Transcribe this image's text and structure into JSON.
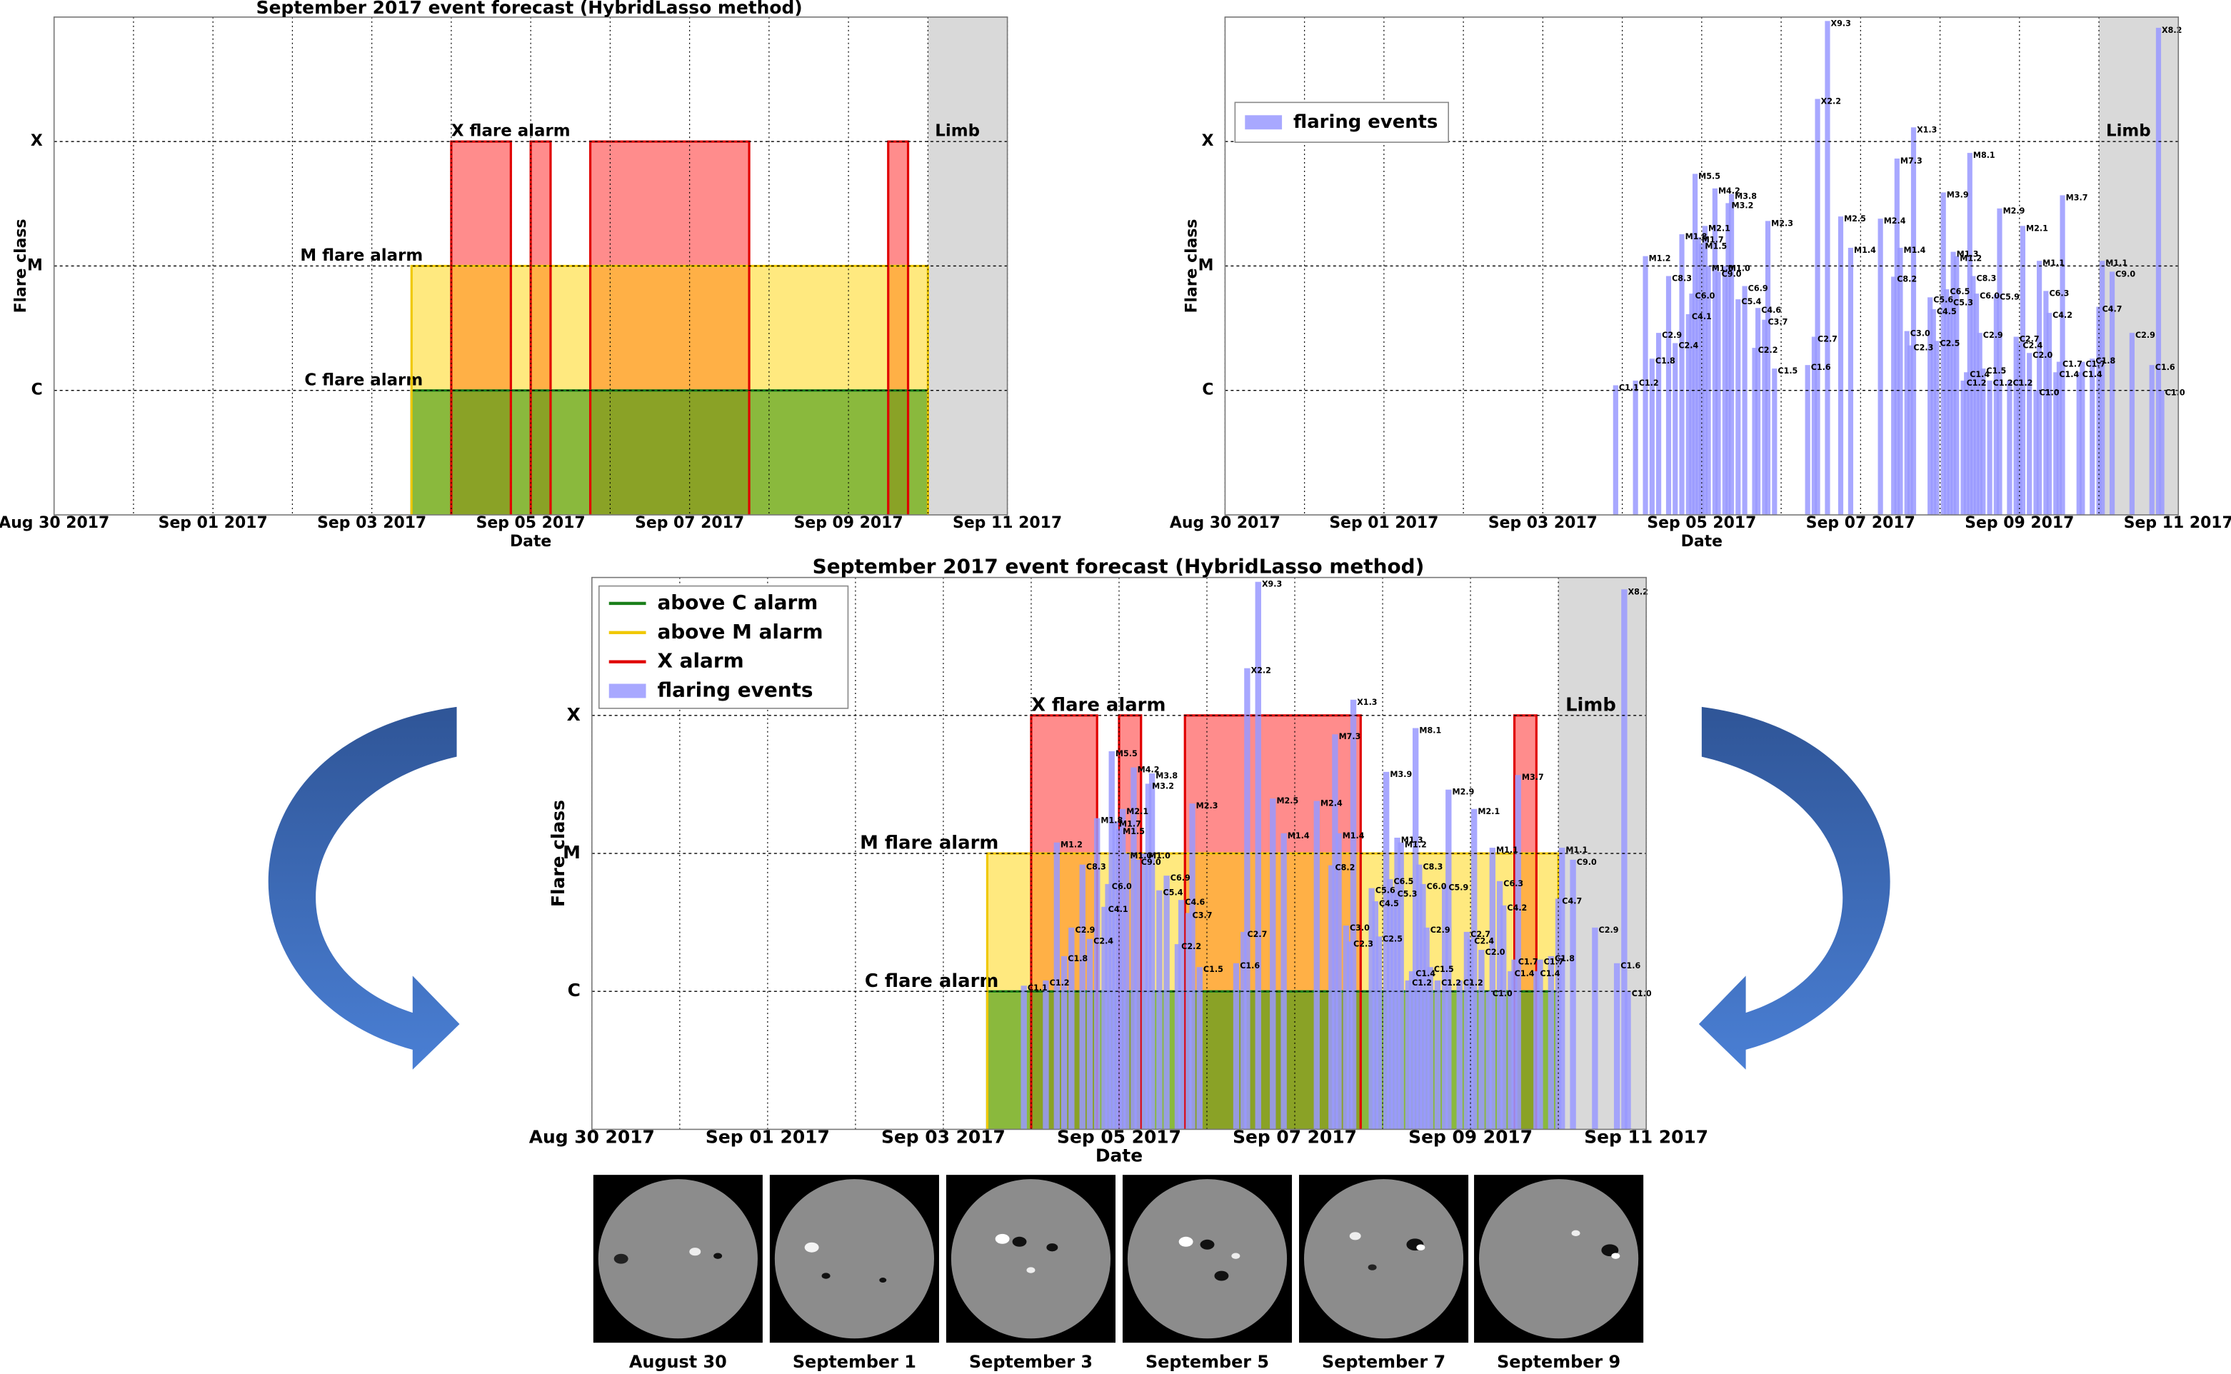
{
  "chart_data": [
    {
      "type": "area",
      "title": "September 2017 event forecast (HybridLasso method)",
      "xlabel": "Date",
      "ylabel": "Flare class",
      "xlim": [
        "2017-08-30T00:00",
        "2017-09-11T00:00"
      ],
      "xticks": [
        {
          "value": "2017-08-30T00:00",
          "label": "Aug 30 2017"
        },
        {
          "value": "2017-09-01T00:00",
          "label": "Sep 01 2017"
        },
        {
          "value": "2017-09-03T00:00",
          "label": "Sep 03 2017"
        },
        {
          "value": "2017-09-05T00:00",
          "label": "Sep 05 2017"
        },
        {
          "value": "2017-09-07T00:00",
          "label": "Sep 07 2017"
        },
        {
          "value": "2017-09-09T00:00",
          "label": "Sep 09 2017"
        },
        {
          "value": "2017-09-11T00:00",
          "label": "Sep 11 2017"
        }
      ],
      "xminorticks": [
        "2017-08-31T00:00",
        "2017-09-02T00:00",
        "2017-09-04T00:00",
        "2017-09-06T00:00",
        "2017-09-08T00:00",
        "2017-09-10T00:00"
      ],
      "yscale": "log",
      "ylim": [
        1e-07,
        0.001
      ],
      "yticks": [
        {
          "value": 1e-06,
          "label": "C"
        },
        {
          "value": 1e-05,
          "label": "M"
        },
        {
          "value": 0.0001,
          "label": "X"
        }
      ],
      "grid": true,
      "limb": {
        "label": "Limb",
        "start": "2017-09-10T00:00",
        "color": "#d9d9d9"
      },
      "alarms": [
        {
          "label": "C flare alarm",
          "level": 1e-06,
          "color": "#1a7f1a",
          "fill": "#3c9a10",
          "intervals": [
            [
              "2017-09-03T12:00",
              "2017-09-10T00:00"
            ]
          ]
        },
        {
          "label": "M flare alarm",
          "level": 1e-05,
          "color": "#f0c800",
          "fill": "#ffd400",
          "intervals": [
            [
              "2017-09-03T12:00",
              "2017-09-10T00:00"
            ]
          ]
        },
        {
          "label": "X flare alarm",
          "level": 0.0001,
          "color": "#e00000",
          "fill": "#ff0000",
          "intervals": [
            [
              "2017-09-04T00:00",
              "2017-09-04T18:00"
            ],
            [
              "2017-09-05T00:00",
              "2017-09-05T06:00"
            ],
            [
              "2017-09-05T18:00",
              "2017-09-07T18:00"
            ],
            [
              "2017-09-09T12:00",
              "2017-09-09T18:00"
            ]
          ]
        }
      ]
    },
    {
      "type": "bar",
      "xlabel": "Date",
      "ylabel": "Flare class",
      "xlim": [
        "2017-08-30T00:00",
        "2017-09-11T00:00"
      ],
      "xticks": [
        {
          "value": "2017-08-30T00:00",
          "label": "Aug 30 2017"
        },
        {
          "value": "2017-09-01T00:00",
          "label": "Sep 01 2017"
        },
        {
          "value": "2017-09-03T00:00",
          "label": "Sep 03 2017"
        },
        {
          "value": "2017-09-05T00:00",
          "label": "Sep 05 2017"
        },
        {
          "value": "2017-09-07T00:00",
          "label": "Sep 07 2017"
        },
        {
          "value": "2017-09-09T00:00",
          "label": "Sep 09 2017"
        },
        {
          "value": "2017-09-11T00:00",
          "label": "Sep 11 2017"
        }
      ],
      "xminorticks": [
        "2017-08-31T00:00",
        "2017-09-02T00:00",
        "2017-09-04T00:00",
        "2017-09-06T00:00",
        "2017-09-08T00:00",
        "2017-09-10T00:00"
      ],
      "yscale": "log",
      "ylim": [
        1e-07,
        0.001
      ],
      "yticks": [
        {
          "value": 1e-06,
          "label": "C"
        },
        {
          "value": 1e-05,
          "label": "M"
        },
        {
          "value": 0.0001,
          "label": "X"
        }
      ],
      "grid": true,
      "legend": "upper left",
      "limb": {
        "label": "Limb",
        "start": "2017-09-10T00:00",
        "color": "#d9d9d9"
      },
      "x": [
        "2017-09-03T22:00",
        "2017-09-04T04:00",
        "2017-09-04T07:00",
        "2017-09-04T09:00",
        "2017-09-04T11:00",
        "2017-09-04T14:00",
        "2017-09-04T16:00",
        "2017-09-04T18:00",
        "2017-09-04T20:00",
        "2017-09-04T21:00",
        "2017-09-04T22:00",
        "2017-09-04T23:00",
        "2017-09-05T00:00",
        "2017-09-05T01:00",
        "2017-09-05T02:00",
        "2017-09-05T04:00",
        "2017-09-05T05:00",
        "2017-09-05T07:00",
        "2017-09-05T08:00",
        "2017-09-05T09:00",
        "2017-09-05T11:00",
        "2017-09-05T13:00",
        "2017-09-05T16:00",
        "2017-09-05T17:00",
        "2017-09-05T19:00",
        "2017-09-05T20:00",
        "2017-09-05T22:00",
        "2017-09-06T08:00",
        "2017-09-06T10:00",
        "2017-09-06T11:00",
        "2017-09-06T14:00",
        "2017-09-06T18:00",
        "2017-09-06T21:00",
        "2017-09-07T06:00",
        "2017-09-07T10:00",
        "2017-09-07T11:00",
        "2017-09-07T12:00",
        "2017-09-07T14:00",
        "2017-09-07T15:00",
        "2017-09-07T16:00",
        "2017-09-07T21:00",
        "2017-09-07T22:00",
        "2017-09-07T23:00",
        "2017-09-08T01:00",
        "2017-09-08T02:00",
        "2017-09-08T03:00",
        "2017-09-08T04:00",
        "2017-09-08T05:00",
        "2017-09-08T07:00",
        "2017-09-08T08:00",
        "2017-09-08T09:00",
        "2017-09-08T10:00",
        "2017-09-08T11:00",
        "2017-09-08T12:00",
        "2017-09-08T13:00",
        "2017-09-08T15:00",
        "2017-09-08T17:00",
        "2017-09-08T18:00",
        "2017-09-08T21:00",
        "2017-09-08T23:00",
        "2017-09-09T00:00",
        "2017-09-09T01:00",
        "2017-09-09T03:00",
        "2017-09-09T05:00",
        "2017-09-09T06:00",
        "2017-09-09T08:00",
        "2017-09-09T09:00",
        "2017-09-09T11:00",
        "2017-09-09T12:00",
        "2017-09-09T13:00",
        "2017-09-09T18:00",
        "2017-09-09T19:00",
        "2017-09-09T22:00",
        "2017-09-10T00:00",
        "2017-09-10T01:00",
        "2017-09-10T04:00",
        "2017-09-10T10:00",
        "2017-09-10T16:00",
        "2017-09-10T18:00",
        "2017-09-10T19:00"
      ],
      "series": [
        {
          "name": "flaring events",
          "color": "#9999ff",
          "values": [
            1.1e-06,
            1.2e-06,
            1.2e-05,
            1.8e-06,
            2.9e-06,
            8.3e-06,
            2.4e-06,
            1.8e-05,
            4.1e-06,
            6e-06,
            5.5e-05,
            1.7e-05,
            1.5e-05,
            2.1e-05,
            1e-05,
            4.2e-05,
            9e-06,
            1e-05,
            3.2e-05,
            3.8e-05,
            5.4e-06,
            6.9e-06,
            2.2e-06,
            4.6e-06,
            3.7e-06,
            2.3e-05,
            1.5e-06,
            1.6e-06,
            2.7e-06,
            0.00022,
            0.00093,
            2.5e-05,
            1.4e-05,
            2.4e-05,
            8.2e-06,
            7.3e-05,
            1.4e-05,
            3e-06,
            2.3e-06,
            0.00013,
            5.6e-06,
            4.5e-06,
            2.5e-06,
            3.9e-05,
            6.5e-06,
            5.3e-06,
            1.3e-05,
            1.2e-05,
            1.2e-06,
            1.4e-06,
            8.1e-05,
            8.3e-06,
            6e-06,
            2.9e-06,
            1.5e-06,
            1.2e-06,
            5.9e-06,
            2.9e-05,
            1.2e-06,
            2.7e-06,
            2.4e-06,
            2.1e-05,
            2e-06,
            1e-06,
            1.1e-05,
            6.3e-06,
            4.2e-06,
            1.4e-06,
            1.7e-06,
            3.7e-05,
            1.4e-06,
            1.7e-06,
            1.8e-06,
            4.7e-06,
            1.1e-05,
            9e-06,
            2.9e-06,
            1.6e-06,
            0.00082,
            1e-06
          ],
          "value_labels": [
            "C1.1",
            "C1.2",
            "M1.2",
            "C1.8",
            "C2.9",
            "C8.3",
            "C2.4",
            "M1.8",
            "C4.1",
            "C6.0",
            "M5.5",
            "M1.7",
            "M1.5",
            "M2.1",
            "M1.0",
            "M4.2",
            "C9.0",
            "M1.0",
            "M3.2",
            "M3.8",
            "C5.4",
            "C6.9",
            "C2.2",
            "C4.6",
            "C3.7",
            "M2.3",
            "C1.5",
            "C1.6",
            "C2.7",
            "X2.2",
            "X9.3",
            "M2.5",
            "M1.4",
            "M2.4",
            "C8.2",
            "M7.3",
            "M1.4",
            "C3.0",
            "C2.3",
            "X1.3",
            "C5.6",
            "C4.5",
            "C2.5",
            "M3.9",
            "C6.5",
            "C5.3",
            "M1.3",
            "M1.2",
            "C1.2",
            "C1.4",
            "M8.1",
            "C8.3",
            "C6.0",
            "C2.9",
            "C1.5",
            "C1.2",
            "C5.9",
            "M2.9",
            "C1.2",
            "C2.7",
            "C2.4",
            "M2.1",
            "C2.0",
            "C1.0",
            "M1.1",
            "C6.3",
            "C4.2",
            "C1.4",
            "C1.7",
            "M3.7",
            "C1.4",
            "C1.7",
            "C1.8",
            "C4.7",
            "M1.1",
            "C9.0",
            "C2.9",
            "C1.6",
            "X8.2",
            "C1.0"
          ]
        }
      ]
    },
    {
      "type": "combo",
      "title": "September 2017 event forecast (HybridLasso method)",
      "xlabel": "Date",
      "ylabel": "Flare class",
      "xlim": [
        "2017-08-30T00:00",
        "2017-09-11T00:00"
      ],
      "xticks": [
        {
          "value": "2017-08-30T00:00",
          "label": "Aug 30 2017"
        },
        {
          "value": "2017-09-01T00:00",
          "label": "Sep 01 2017"
        },
        {
          "value": "2017-09-03T00:00",
          "label": "Sep 03 2017"
        },
        {
          "value": "2017-09-05T00:00",
          "label": "Sep 05 2017"
        },
        {
          "value": "2017-09-07T00:00",
          "label": "Sep 07 2017"
        },
        {
          "value": "2017-09-09T00:00",
          "label": "Sep 09 2017"
        },
        {
          "value": "2017-09-11T00:00",
          "label": "Sep 11 2017"
        }
      ],
      "xminorticks": [
        "2017-08-31T00:00",
        "2017-09-02T00:00",
        "2017-09-04T00:00",
        "2017-09-06T00:00",
        "2017-09-08T00:00",
        "2017-09-10T00:00"
      ],
      "yscale": "log",
      "ylim": [
        1e-07,
        0.001
      ],
      "yticks": [
        {
          "value": 1e-06,
          "label": "C"
        },
        {
          "value": 1e-05,
          "label": "M"
        },
        {
          "value": 0.0001,
          "label": "X"
        }
      ],
      "grid": true,
      "legend": "upper left",
      "limb": {
        "label": "Limb",
        "start": "2017-09-10T00:00",
        "color": "#d9d9d9"
      },
      "alarms": [
        {
          "name": "above C alarm",
          "label": "C flare alarm",
          "level": 1e-06,
          "color": "#1a7f1a",
          "fill": "#3c9a10",
          "intervals": [
            [
              "2017-09-03T12:00",
              "2017-09-10T00:00"
            ]
          ]
        },
        {
          "name": "above M alarm",
          "label": "M flare alarm",
          "level": 1e-05,
          "color": "#f0c800",
          "fill": "#ffd400",
          "intervals": [
            [
              "2017-09-03T12:00",
              "2017-09-10T00:00"
            ]
          ]
        },
        {
          "name": "X alarm",
          "label": "X flare alarm",
          "level": 0.0001,
          "color": "#e00000",
          "fill": "#ff0000",
          "intervals": [
            [
              "2017-09-04T00:00",
              "2017-09-04T18:00"
            ],
            [
              "2017-09-05T00:00",
              "2017-09-05T06:00"
            ],
            [
              "2017-09-05T18:00",
              "2017-09-07T18:00"
            ],
            [
              "2017-09-09T12:00",
              "2017-09-09T18:00"
            ]
          ]
        }
      ],
      "x": [
        "2017-09-03T22:00",
        "2017-09-04T04:00",
        "2017-09-04T07:00",
        "2017-09-04T09:00",
        "2017-09-04T11:00",
        "2017-09-04T14:00",
        "2017-09-04T16:00",
        "2017-09-04T18:00",
        "2017-09-04T20:00",
        "2017-09-04T21:00",
        "2017-09-04T22:00",
        "2017-09-04T23:00",
        "2017-09-05T00:00",
        "2017-09-05T01:00",
        "2017-09-05T02:00",
        "2017-09-05T04:00",
        "2017-09-05T05:00",
        "2017-09-05T07:00",
        "2017-09-05T08:00",
        "2017-09-05T09:00",
        "2017-09-05T11:00",
        "2017-09-05T13:00",
        "2017-09-05T16:00",
        "2017-09-05T17:00",
        "2017-09-05T19:00",
        "2017-09-05T20:00",
        "2017-09-05T22:00",
        "2017-09-06T08:00",
        "2017-09-06T10:00",
        "2017-09-06T11:00",
        "2017-09-06T14:00",
        "2017-09-06T18:00",
        "2017-09-06T21:00",
        "2017-09-07T06:00",
        "2017-09-07T10:00",
        "2017-09-07T11:00",
        "2017-09-07T12:00",
        "2017-09-07T14:00",
        "2017-09-07T15:00",
        "2017-09-07T16:00",
        "2017-09-07T21:00",
        "2017-09-07T22:00",
        "2017-09-07T23:00",
        "2017-09-08T01:00",
        "2017-09-08T02:00",
        "2017-09-08T03:00",
        "2017-09-08T04:00",
        "2017-09-08T05:00",
        "2017-09-08T07:00",
        "2017-09-08T08:00",
        "2017-09-08T09:00",
        "2017-09-08T10:00",
        "2017-09-08T11:00",
        "2017-09-08T12:00",
        "2017-09-08T13:00",
        "2017-09-08T15:00",
        "2017-09-08T17:00",
        "2017-09-08T18:00",
        "2017-09-08T21:00",
        "2017-09-08T23:00",
        "2017-09-09T00:00",
        "2017-09-09T01:00",
        "2017-09-09T03:00",
        "2017-09-09T05:00",
        "2017-09-09T06:00",
        "2017-09-09T08:00",
        "2017-09-09T09:00",
        "2017-09-09T11:00",
        "2017-09-09T12:00",
        "2017-09-09T13:00",
        "2017-09-09T18:00",
        "2017-09-09T19:00",
        "2017-09-09T22:00",
        "2017-09-10T00:00",
        "2017-09-10T01:00",
        "2017-09-10T04:00",
        "2017-09-10T10:00",
        "2017-09-10T16:00",
        "2017-09-10T18:00",
        "2017-09-10T19:00"
      ],
      "series": [
        {
          "name": "flaring events",
          "color": "#9999ff",
          "values": [
            1.1e-06,
            1.2e-06,
            1.2e-05,
            1.8e-06,
            2.9e-06,
            8.3e-06,
            2.4e-06,
            1.8e-05,
            4.1e-06,
            6e-06,
            5.5e-05,
            1.7e-05,
            1.5e-05,
            2.1e-05,
            1e-05,
            4.2e-05,
            9e-06,
            1e-05,
            3.2e-05,
            3.8e-05,
            5.4e-06,
            6.9e-06,
            2.2e-06,
            4.6e-06,
            3.7e-06,
            2.3e-05,
            1.5e-06,
            1.6e-06,
            2.7e-06,
            0.00022,
            0.00093,
            2.5e-05,
            1.4e-05,
            2.4e-05,
            8.2e-06,
            7.3e-05,
            1.4e-05,
            3e-06,
            2.3e-06,
            0.00013,
            5.6e-06,
            4.5e-06,
            2.5e-06,
            3.9e-05,
            6.5e-06,
            5.3e-06,
            1.3e-05,
            1.2e-05,
            1.2e-06,
            1.4e-06,
            8.1e-05,
            8.3e-06,
            6e-06,
            2.9e-06,
            1.5e-06,
            1.2e-06,
            5.9e-06,
            2.9e-05,
            1.2e-06,
            2.7e-06,
            2.4e-06,
            2.1e-05,
            2e-06,
            1e-06,
            1.1e-05,
            6.3e-06,
            4.2e-06,
            1.4e-06,
            1.7e-06,
            3.7e-05,
            1.4e-06,
            1.7e-06,
            1.8e-06,
            4.7e-06,
            1.1e-05,
            9e-06,
            2.9e-06,
            1.6e-06,
            0.00082,
            1e-06
          ],
          "value_labels": [
            "C1.1",
            "C1.2",
            "M1.2",
            "C1.8",
            "C2.9",
            "C8.3",
            "C2.4",
            "M1.8",
            "C4.1",
            "C6.0",
            "M5.5",
            "M1.7",
            "M1.5",
            "M2.1",
            "M1.0",
            "M4.2",
            "C9.0",
            "M1.0",
            "M3.2",
            "M3.8",
            "C5.4",
            "C6.9",
            "C2.2",
            "C4.6",
            "C3.7",
            "M2.3",
            "C1.5",
            "C1.6",
            "C2.7",
            "X2.2",
            "X9.3",
            "M2.5",
            "M1.4",
            "M2.4",
            "C8.2",
            "M7.3",
            "M1.4",
            "C3.0",
            "C2.3",
            "X1.3",
            "C5.6",
            "C4.5",
            "C2.5",
            "M3.9",
            "C6.5",
            "C5.3",
            "M1.3",
            "M1.2",
            "C1.2",
            "C1.4",
            "M8.1",
            "C8.3",
            "C6.0",
            "C2.9",
            "C1.5",
            "C1.2",
            "C5.9",
            "M2.9",
            "C1.2",
            "C2.7",
            "C2.4",
            "M2.1",
            "C2.0",
            "C1.0",
            "M1.1",
            "C6.3",
            "C4.2",
            "C1.4",
            "C1.7",
            "M3.7",
            "C1.4",
            "C1.7",
            "C1.8",
            "C4.7",
            "M1.1",
            "C9.0",
            "C2.9",
            "C1.6",
            "X8.2",
            "C1.0"
          ]
        }
      ]
    }
  ],
  "images": {
    "captions": [
      "August 30",
      "September 1",
      "September 3",
      "September 5",
      "September 7",
      "September 9"
    ]
  }
}
